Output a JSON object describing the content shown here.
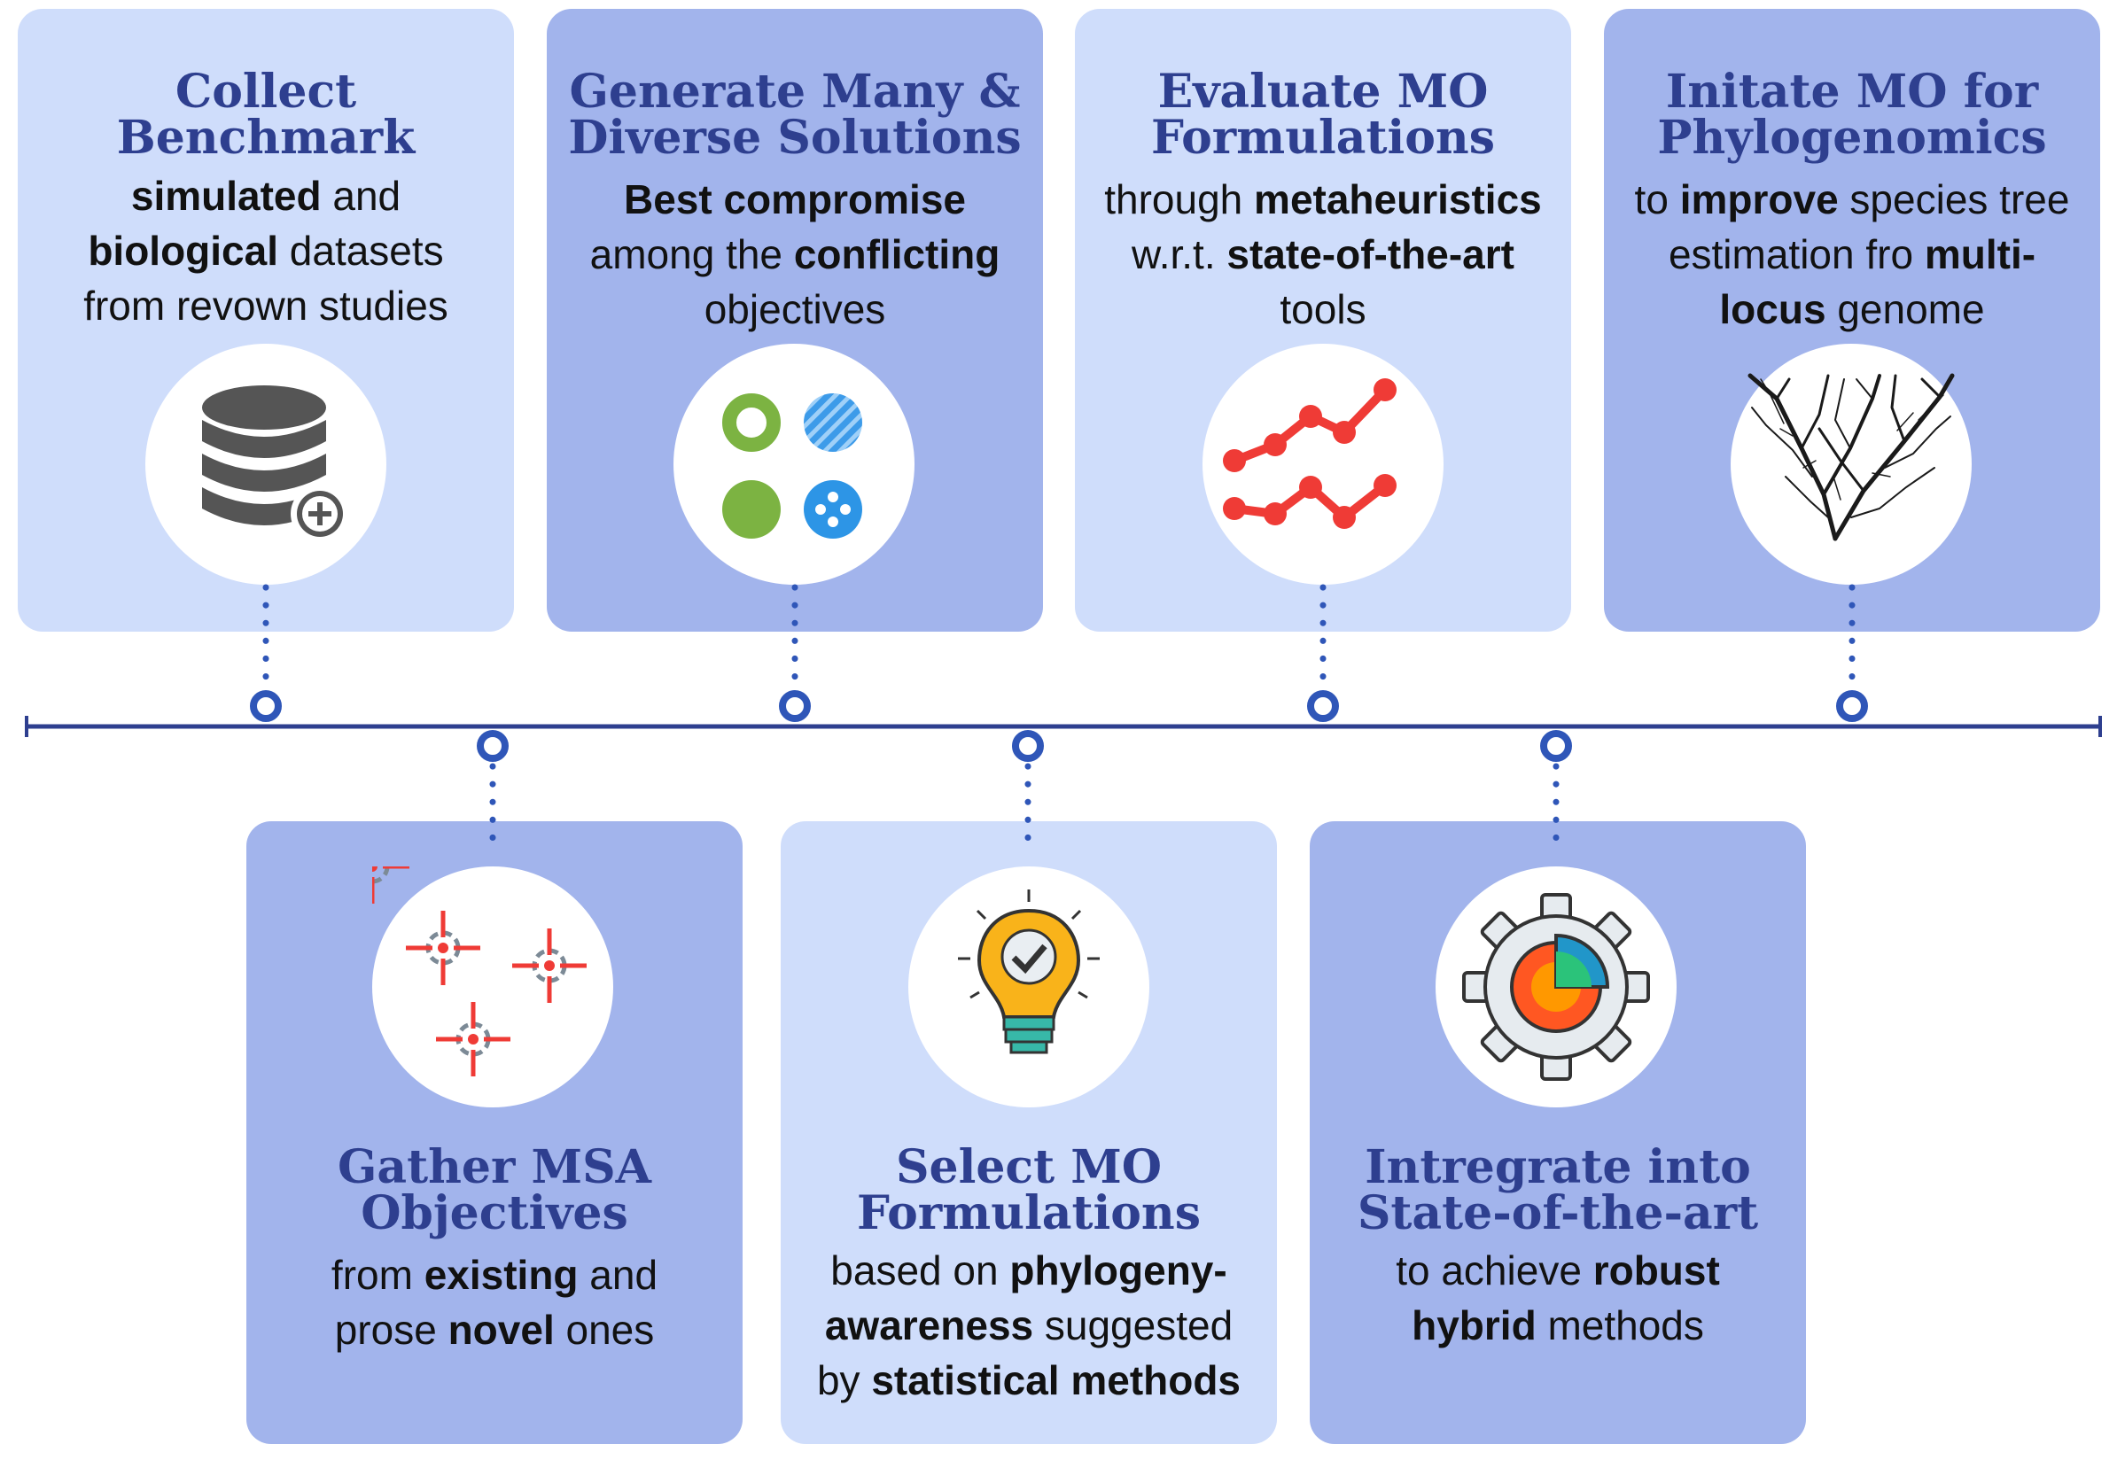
{
  "steps": [
    {
      "title_lines": [
        "Collect",
        "Benchmark"
      ],
      "desc_lines": [
        [
          {
            "t": "simulated",
            "b": true
          },
          {
            "t": " and",
            "b": false
          }
        ],
        [
          {
            "t": "biological",
            "b": true
          },
          {
            "t": " datasets",
            "b": false
          }
        ],
        [
          {
            "t": "from revown studies",
            "b": false
          }
        ]
      ],
      "icon": "database-plus-icon"
    },
    {
      "title_lines": [
        "Generate Many &",
        "Diverse Solutions"
      ],
      "desc_lines": [
        [
          {
            "t": "Best compromise",
            "b": true
          }
        ],
        [
          {
            "t": "among the ",
            "b": false
          },
          {
            "t": "conflicting",
            "b": true
          }
        ],
        [
          {
            "t": "objectives",
            "b": false
          }
        ]
      ],
      "icon": "diverse-circles-icon"
    },
    {
      "title_lines": [
        "Evaluate MO",
        "Formulations"
      ],
      "desc_lines": [
        [
          {
            "t": "through ",
            "b": false
          },
          {
            "t": "metaheuristics",
            "b": true
          }
        ],
        [
          {
            "t": "w.r.t. ",
            "b": false
          },
          {
            "t": "state-of-the-art",
            "b": true
          }
        ],
        [
          {
            "t": "tools",
            "b": false
          }
        ]
      ],
      "icon": "line-chart-icon"
    },
    {
      "title_lines": [
        "Initate MO for",
        "Phylogenomics"
      ],
      "desc_lines": [
        [
          {
            "t": "to ",
            "b": false
          },
          {
            "t": "improve",
            "b": true
          },
          {
            "t": " species tree",
            "b": false
          }
        ],
        [
          {
            "t": "estimation fro ",
            "b": false
          },
          {
            "t": "multi-",
            "b": true
          }
        ],
        [
          {
            "t": "locus",
            "b": true
          },
          {
            "t": " genome",
            "b": false
          }
        ]
      ],
      "icon": "phylogenetic-tree-icon"
    },
    {
      "title_lines": [
        "Gather MSA",
        "Objectives"
      ],
      "desc_lines": [
        [
          {
            "t": "from ",
            "b": false
          },
          {
            "t": "existing",
            "b": true
          },
          {
            "t": " and",
            "b": false
          }
        ],
        [
          {
            "t": "prose ",
            "b": false
          },
          {
            "t": "novel",
            "b": true
          },
          {
            "t": " ones",
            "b": false
          }
        ]
      ],
      "icon": "crosshair-targets-icon"
    },
    {
      "title_lines": [
        "Select MO",
        "Formulations"
      ],
      "desc_lines": [
        [
          {
            "t": "based on ",
            "b": false
          },
          {
            "t": "phylogeny-",
            "b": true
          }
        ],
        [
          {
            "t": "awareness",
            "b": true
          },
          {
            "t": " suggested",
            "b": false
          }
        ],
        [
          {
            "t": "by ",
            "b": false
          },
          {
            "t": "statistical methods",
            "b": true
          }
        ]
      ],
      "icon": "lightbulb-check-icon"
    },
    {
      "title_lines": [
        "Intregrate into",
        "State-of-the-art"
      ],
      "desc_lines": [
        [
          {
            "t": "to achieve ",
            "b": false
          },
          {
            "t": "robust",
            "b": true
          }
        ],
        [
          {
            "t": "hybrid",
            "b": true
          },
          {
            "t": " methods",
            "b": false
          }
        ]
      ],
      "icon": "gear-pie-chart-icon"
    }
  ],
  "colors": {
    "title": "#2e3f8f",
    "card_light": "#cfddfb",
    "card_dark": "#a2b4ec",
    "timeline": "#2e3f8f",
    "connector": "#2f56b8"
  }
}
